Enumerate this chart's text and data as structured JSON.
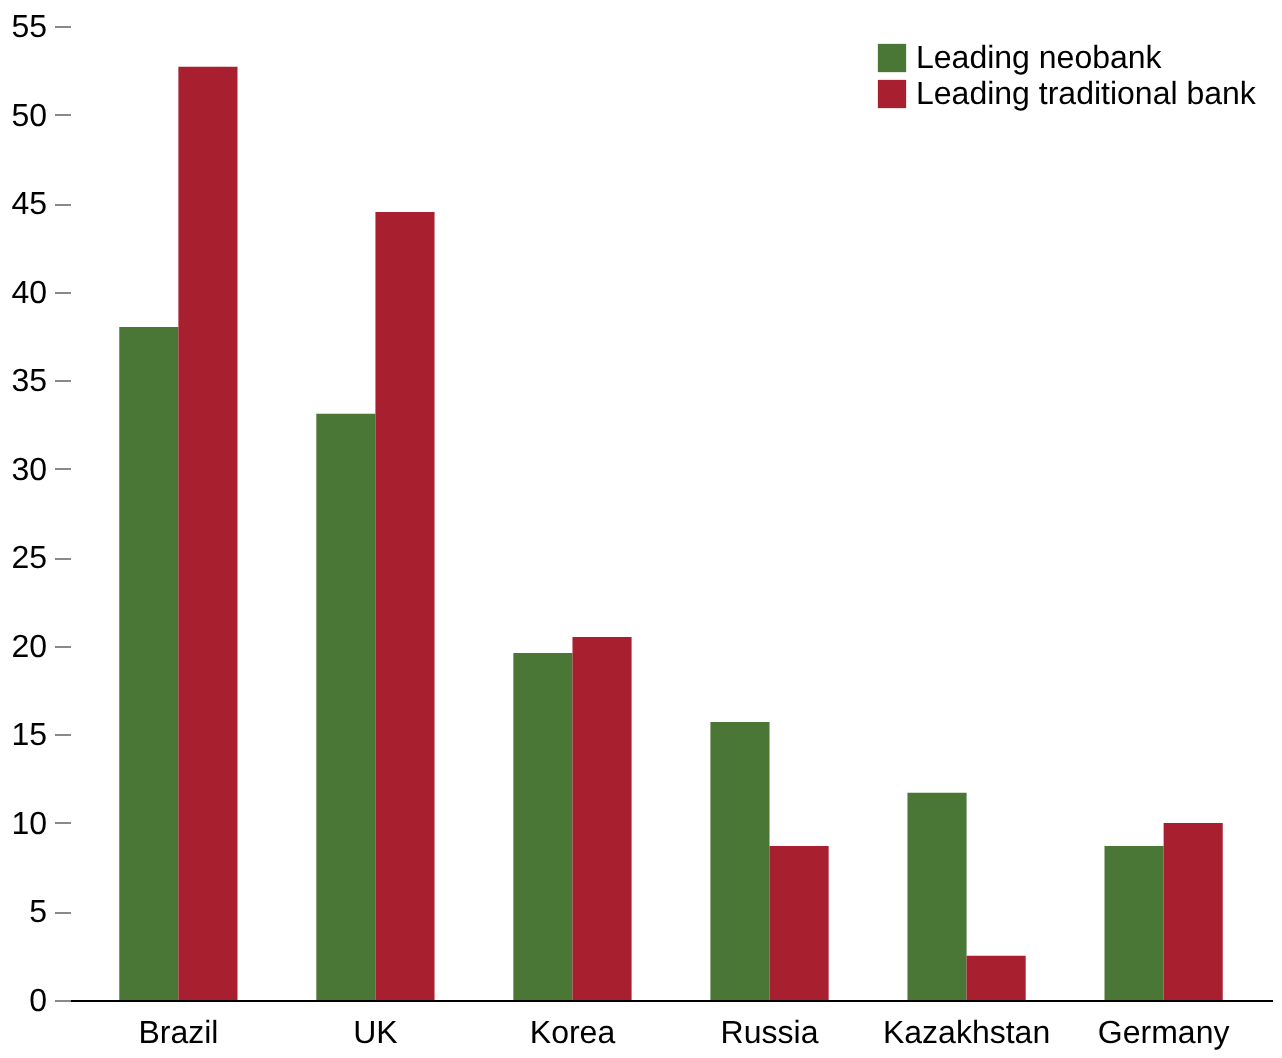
{
  "chart_data": {
    "type": "bar",
    "categories": [
      "Brazil",
      "UK",
      "Korea",
      "Russia",
      "Kazakhstan",
      "Germany"
    ],
    "series": [
      {
        "name": "Leading neobank",
        "color": "#4a7636",
        "values": [
          38,
          33.1,
          19.6,
          15.7,
          11.7,
          8.7
        ]
      },
      {
        "name": "Leading traditional bank",
        "color": "#a81f2f",
        "values": [
          52.7,
          44.5,
          20.5,
          8.7,
          2.5,
          10.0
        ]
      }
    ],
    "ylim": [
      0,
      55
    ],
    "yticks": [
      0,
      5,
      10,
      15,
      20,
      25,
      30,
      35,
      40,
      45,
      50,
      55
    ],
    "grid": false,
    "legend": "top right"
  }
}
